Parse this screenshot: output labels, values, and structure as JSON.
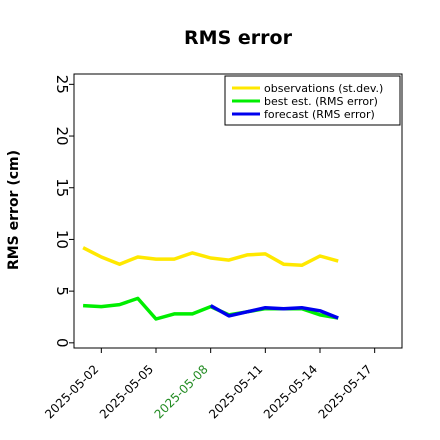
{
  "chart_data": {
    "type": "line",
    "title": "RMS error",
    "xlabel": "",
    "ylabel": "RMS error (cm)",
    "ylim": [
      -0.5,
      26
    ],
    "yticks": [
      0,
      5,
      10,
      15,
      20,
      25
    ],
    "x_range": [
      "2025-04-30T12:00",
      "2025-05-18T12:00"
    ],
    "xticks": [
      {
        "date": "2025-05-02",
        "label": "2025-05-02",
        "color": "#000000"
      },
      {
        "date": "2025-05-05",
        "label": "2025-05-05",
        "color": "#000000"
      },
      {
        "date": "2025-05-08",
        "label": "2025-05-08",
        "color": "#228B22"
      },
      {
        "date": "2025-05-11",
        "label": "2025-05-11",
        "color": "#000000"
      },
      {
        "date": "2025-05-14",
        "label": "2025-05-14",
        "color": "#000000"
      },
      {
        "date": "2025-05-17",
        "label": "2025-05-17",
        "color": "#000000"
      }
    ],
    "grid": false,
    "legend_position": "top-right",
    "series": [
      {
        "name": "observations (st.dev.)",
        "color": "#FFE800",
        "x": [
          "2025-05-01",
          "2025-05-02",
          "2025-05-03",
          "2025-05-04",
          "2025-05-05",
          "2025-05-06",
          "2025-05-07",
          "2025-05-08",
          "2025-05-09",
          "2025-05-10",
          "2025-05-11",
          "2025-05-12",
          "2025-05-13",
          "2025-05-14",
          "2025-05-15"
        ],
        "values": [
          9.2,
          8.3,
          7.6,
          8.3,
          8.1,
          8.1,
          8.7,
          8.2,
          8.0,
          8.5,
          8.6,
          7.6,
          7.5,
          8.4,
          7.9
        ]
      },
      {
        "name": "best est. (RMS error)",
        "color": "#00EE00",
        "x": [
          "2025-05-01",
          "2025-05-02",
          "2025-05-03",
          "2025-05-04",
          "2025-05-05",
          "2025-05-06",
          "2025-05-07",
          "2025-05-08",
          "2025-05-09",
          "2025-05-10",
          "2025-05-11",
          "2025-05-12",
          "2025-05-13",
          "2025-05-14",
          "2025-05-15"
        ],
        "values": [
          3.6,
          3.5,
          3.7,
          4.3,
          2.3,
          2.8,
          2.8,
          3.5,
          2.7,
          3.0,
          3.3,
          3.3,
          3.3,
          2.7,
          2.4
        ]
      },
      {
        "name": "forecast (RMS error)",
        "color": "#0000EE",
        "x": [
          "2025-05-08",
          "2025-05-09",
          "2025-05-10",
          "2025-05-11",
          "2025-05-12",
          "2025-05-13",
          "2025-05-14",
          "2025-05-15"
        ],
        "values": [
          3.6,
          2.6,
          3.0,
          3.4,
          3.3,
          3.4,
          3.1,
          2.4
        ]
      }
    ]
  }
}
